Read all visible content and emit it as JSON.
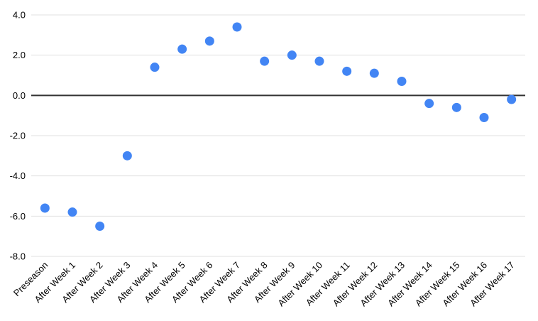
{
  "chart_data": {
    "type": "scatter",
    "title": "",
    "xlabel": "",
    "ylabel": "",
    "categories": [
      "Preseason",
      "After Week 1",
      "After Week 2",
      "After Week 3",
      "After Week 4",
      "After Week 5",
      "After Week 6",
      "After Week 7",
      "After Week 8",
      "After Week 9",
      "After Week 10",
      "After Week 11",
      "After Week 12",
      "After Week 13",
      "After Week 14",
      "After Week 15",
      "After Week 16",
      "After Week 17"
    ],
    "values": [
      -5.6,
      -5.8,
      -6.5,
      -3.0,
      1.4,
      2.3,
      2.7,
      3.4,
      1.7,
      2.0,
      1.7,
      1.2,
      1.1,
      0.7,
      -0.4,
      -0.6,
      -1.1,
      -0.2
    ],
    "ylim": [
      -8.0,
      4.0
    ],
    "yticks": [
      4,
      2,
      0,
      -2,
      -4,
      -6,
      -8
    ],
    "ytick_labels": [
      "4.0",
      "2.0",
      "0.0",
      "-2.0",
      "-4.0",
      "-6.0",
      "-8.0"
    ],
    "grid": true,
    "legend": "none",
    "x_label_rotation_deg": -45,
    "colors": {
      "point": "#4285f4",
      "gridline": "#e0e0e0",
      "zero_line": "#333333",
      "label": "#000000",
      "background": "#ffffff"
    }
  }
}
